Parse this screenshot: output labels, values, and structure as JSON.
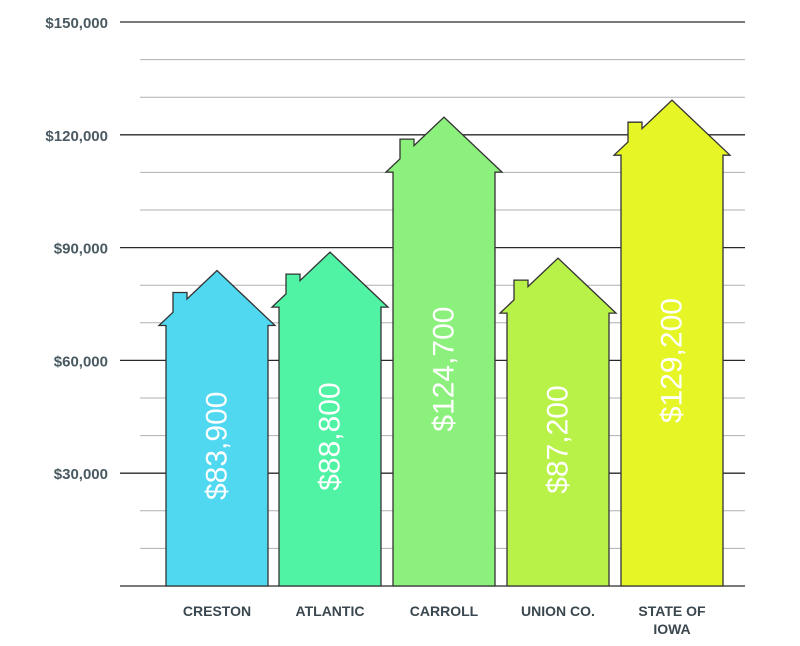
{
  "chart_data": {
    "type": "bar",
    "title": "",
    "xlabel": "",
    "ylabel": "",
    "ylim": [
      0,
      150000
    ],
    "y_ticks": [
      30000,
      60000,
      90000,
      120000,
      150000
    ],
    "y_tick_labels": [
      "$30,000",
      "$60,000",
      "$90,000",
      "$120,000",
      "$150,000"
    ],
    "minor_grid_step": 10000,
    "grid": true,
    "bar_shape": "house",
    "categories": [
      [
        "CRESTON"
      ],
      [
        "ATLANTIC"
      ],
      [
        "CARROLL"
      ],
      [
        "UNION CO."
      ],
      [
        "STATE OF",
        "IOWA"
      ]
    ],
    "values": [
      83900,
      88800,
      124700,
      87200,
      129200
    ],
    "value_labels": [
      "$83,900",
      "$88,800",
      "$124,700",
      "$87,200",
      "$129,200"
    ],
    "colors": [
      "#4fd8f0",
      "#50f2a4",
      "#8cf07c",
      "#b8f248",
      "#e6f526"
    ]
  }
}
